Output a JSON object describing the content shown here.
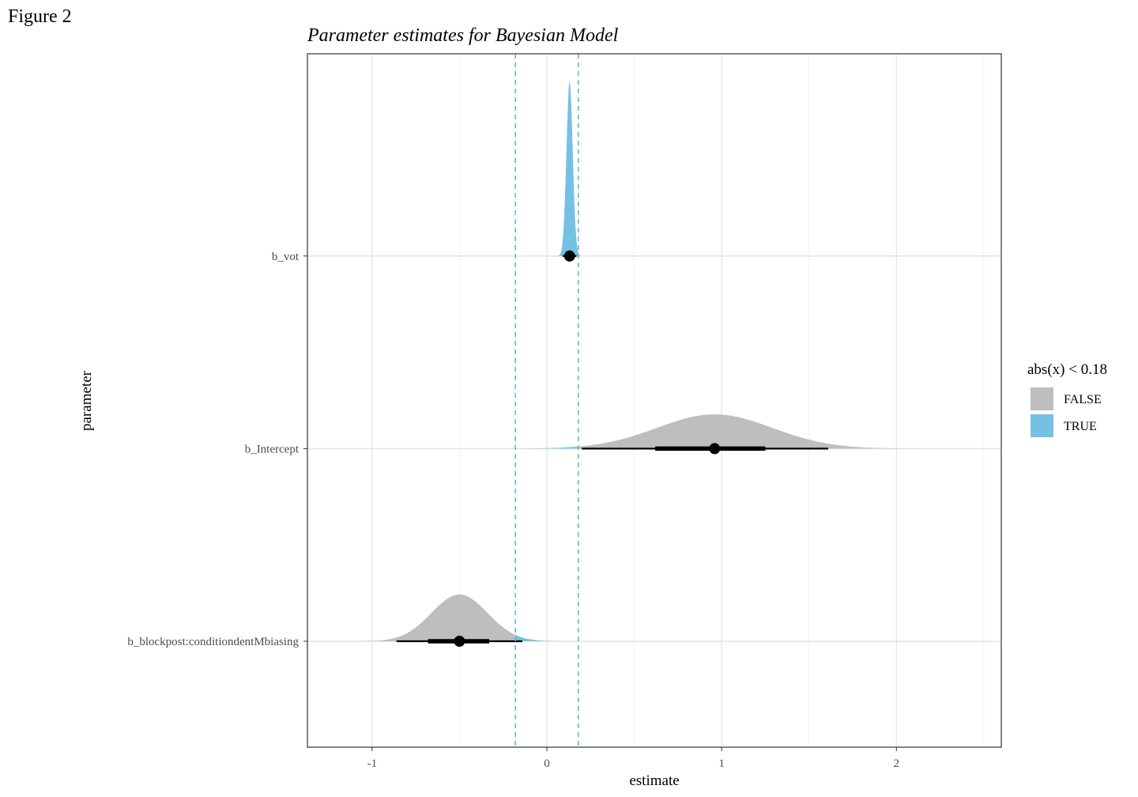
{
  "page": {
    "figure_label": "Figure 2"
  },
  "chart_data": {
    "type": "halfeye",
    "title": "Parameter estimates for Bayesian Model",
    "xlabel": "estimate",
    "ylabel": "parameter",
    "xlim": [
      -1.37,
      2.6
    ],
    "x_ticks": [
      -1,
      0,
      1,
      2
    ],
    "x_tick_labels": [
      "-1",
      "0",
      "1",
      "2"
    ],
    "grid": true,
    "rope": {
      "lower": -0.18,
      "upper": 0.18,
      "line_color": "#5AB4C8",
      "line_style": "dashed"
    },
    "legend": {
      "title": "abs(x) < 0.18",
      "placement": "right",
      "entries": [
        {
          "label": "FALSE",
          "color": "#BEBEBE"
        },
        {
          "label": "TRUE",
          "color": "#75C1E3"
        }
      ]
    },
    "parameters": [
      {
        "name": "b_vot",
        "point": 0.13,
        "interval_66": [
          0.11,
          0.15
        ],
        "interval_95": [
          0.09,
          0.17
        ],
        "density_mean": 0.13,
        "density_sd": 0.018,
        "density_peak": 0.9
      },
      {
        "name": "b_Intercept",
        "point": 0.96,
        "interval_66": [
          0.62,
          1.25
        ],
        "interval_95": [
          0.2,
          1.61
        ],
        "density_mean": 0.96,
        "density_sd": 0.33,
        "density_peak": 0.035
      },
      {
        "name": "b_blockpost:conditiondentMbiasing",
        "point": -0.5,
        "interval_66": [
          -0.68,
          -0.33
        ],
        "interval_95": [
          -0.86,
          -0.14
        ],
        "density_mean": -0.5,
        "density_sd": 0.16,
        "density_peak": 0.065
      }
    ]
  }
}
